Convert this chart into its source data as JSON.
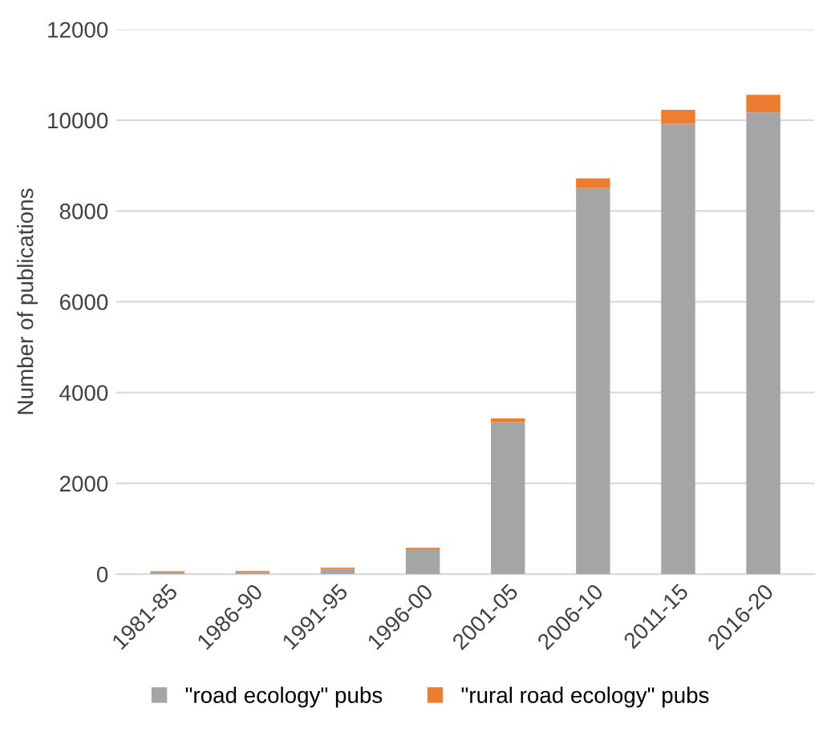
{
  "chart_data": {
    "type": "bar",
    "stacked": true,
    "ylabel": "Number of publications",
    "categories": [
      "1981-85",
      "1986-90",
      "1991-95",
      "1996-00",
      "2001-05",
      "2006-10",
      "2011-15",
      "2016-20"
    ],
    "series": [
      {
        "name": "\"road ecology\" pubs",
        "color": "#a5a5a5",
        "values": [
          60,
          60,
          120,
          550,
          3350,
          8500,
          9920,
          10170
        ]
      },
      {
        "name": "\"rural road ecology\" pubs",
        "color": "#ed7d31",
        "values": [
          5,
          10,
          20,
          30,
          80,
          220,
          310,
          390
        ]
      }
    ],
    "ylim": [
      0,
      12000
    ],
    "yticks": [
      0,
      2000,
      4000,
      6000,
      8000,
      10000,
      12000
    ],
    "grid": "y",
    "legend": "bottom"
  }
}
